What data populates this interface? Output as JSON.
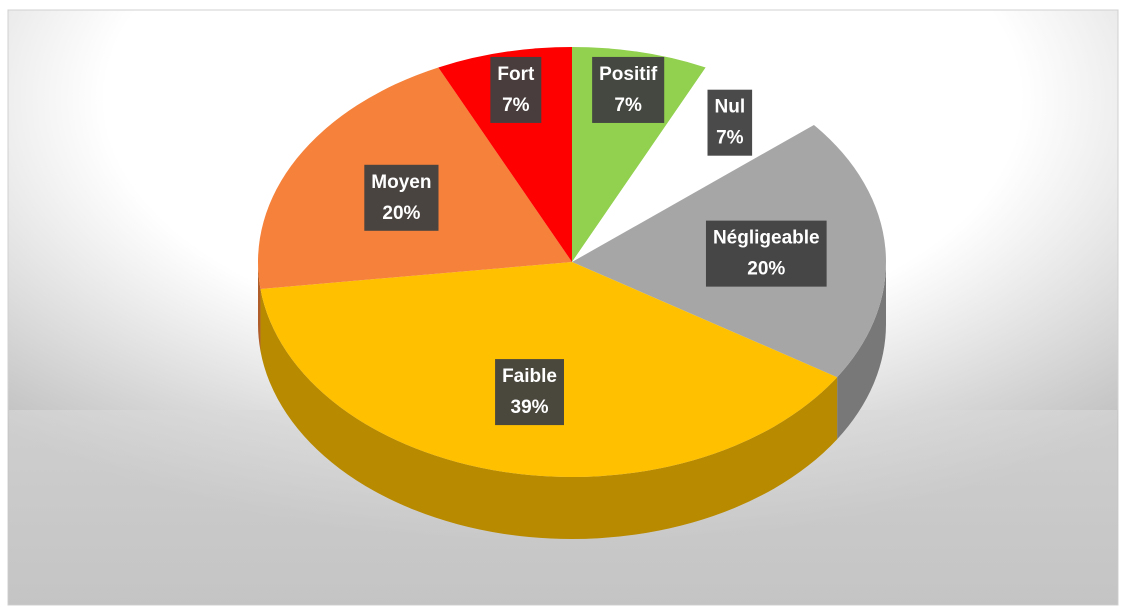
{
  "chart_data": {
    "type": "pie",
    "categories": [
      "Positif",
      "Nul",
      "Négligeable",
      "Faible",
      "Moyen",
      "Fort"
    ],
    "values": [
      7,
      7,
      20,
      39,
      20,
      7
    ],
    "value_labels": [
      "7%",
      "7%",
      "20%",
      "39%",
      "20%",
      "7%"
    ],
    "colors": [
      "#92d050",
      "#ffffff",
      "#a6a6a6",
      "#ffc000",
      "#f5813a",
      "#ff0000"
    ]
  }
}
